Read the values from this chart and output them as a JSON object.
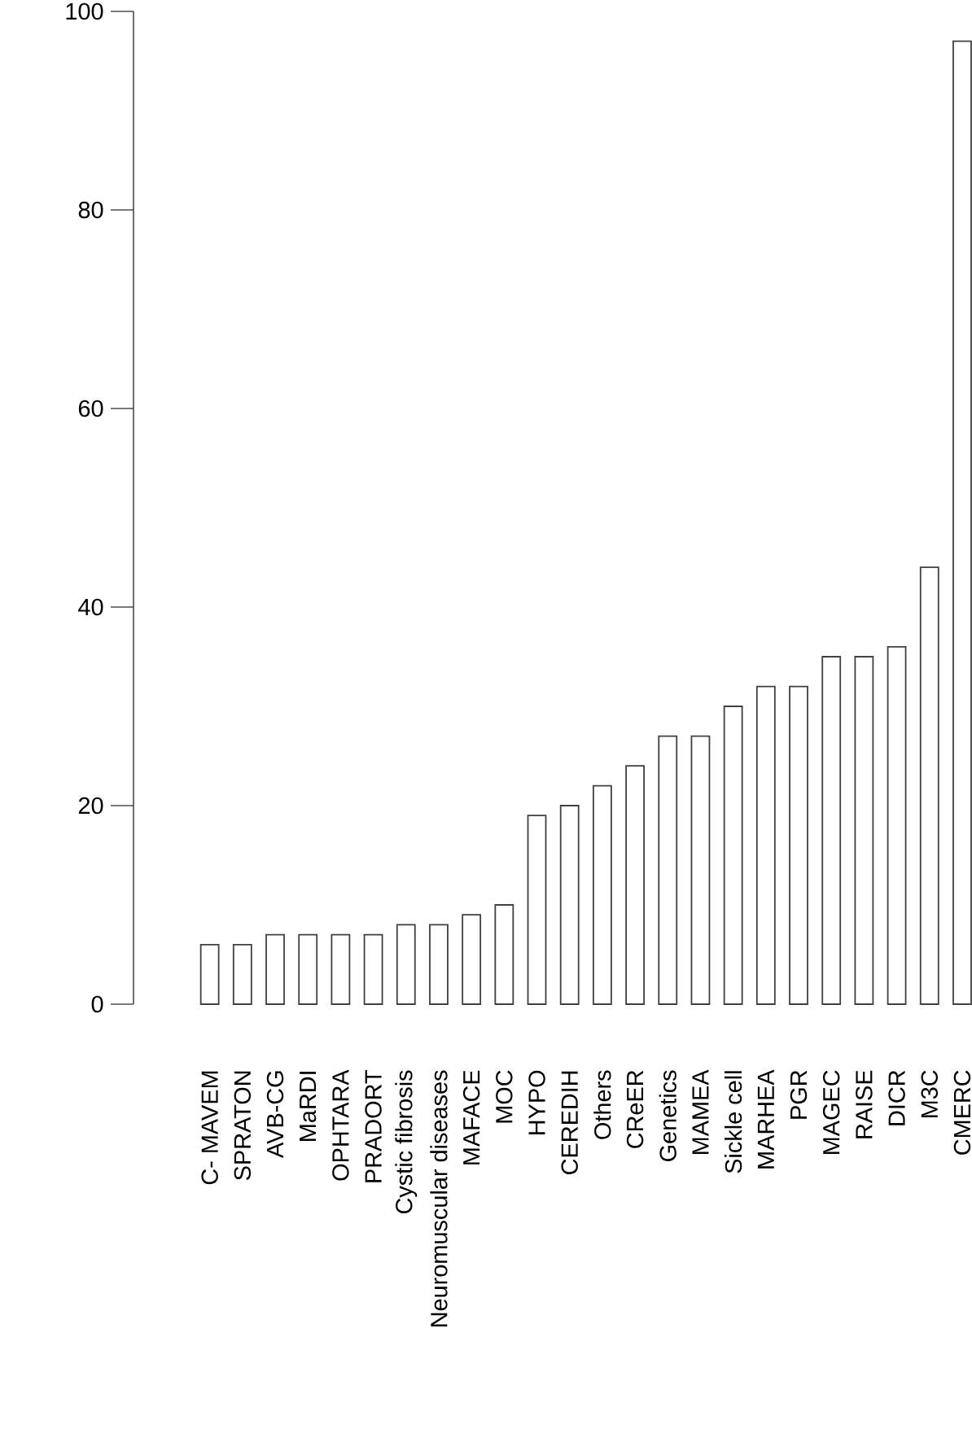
{
  "chart_data": {
    "type": "bar",
    "categories": [
      "C- MAVEM",
      "SPRATON",
      "AVB-CG",
      "MaRDI",
      "OPHTARA",
      "PRADORT",
      "Cystic fibrosis",
      "Neuromuscular diseases",
      "MAFACE",
      "MOC",
      "HYPO",
      "CEREDIH",
      "Others",
      "CReER",
      "Genetics",
      "MAMEA",
      "Sickle cell",
      "MARHEA",
      "PGR",
      "MAGEC",
      "RAISE",
      "DICR",
      "M3C",
      "CMERC"
    ],
    "values": [
      6,
      6,
      7,
      7,
      7,
      7,
      8,
      8,
      9,
      10,
      19,
      20,
      22,
      24,
      27,
      27,
      30,
      32,
      32,
      35,
      35,
      36,
      44,
      97
    ],
    "color": "#ffffff",
    "ylim": [
      0,
      100
    ],
    "yticks": [
      0,
      20,
      40,
      60,
      80,
      100
    ]
  }
}
